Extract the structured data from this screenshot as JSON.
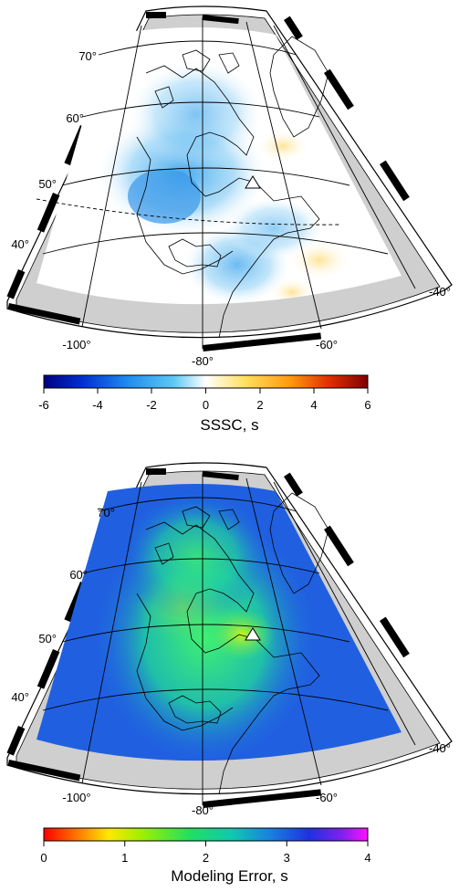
{
  "panels": [
    {
      "id": "sssc",
      "lat_labels": [
        "70°",
        "60°",
        "50°",
        "40°"
      ],
      "lon_labels": [
        "-100°",
        "-80°",
        "-60°",
        "-40°"
      ],
      "colorbar": {
        "title": "SSSC, s",
        "ticks": [
          "-6",
          "-4",
          "-2",
          "0",
          "2",
          "4",
          "6"
        ],
        "range": [
          -6,
          6
        ],
        "stops": [
          "#00007f",
          "#0030d0",
          "#1f8cf0",
          "#5cc8f4",
          "#ffffff",
          "#ffe060",
          "#ff9a10",
          "#e03000",
          "#7f0000"
        ]
      },
      "station_marker": "white-triangle"
    },
    {
      "id": "modeling-error",
      "lat_labels": [
        "70°",
        "60°",
        "50°",
        "40°"
      ],
      "lon_labels": [
        "-100°",
        "-80°",
        "-60°",
        "-40°"
      ],
      "colorbar": {
        "title": "Modeling Error, s",
        "ticks": [
          "0",
          "1",
          "2",
          "3",
          "4"
        ],
        "range": [
          0,
          4
        ],
        "stops": [
          "#ff0000",
          "#ff8000",
          "#ffe800",
          "#a0f000",
          "#20e060",
          "#10c8b0",
          "#1880e0",
          "#2030e0",
          "#8020f0",
          "#ff10ff"
        ]
      },
      "station_marker": "white-triangle"
    }
  ]
}
